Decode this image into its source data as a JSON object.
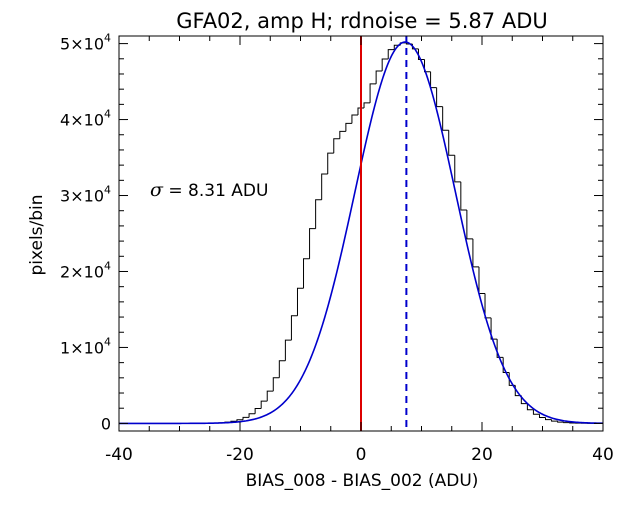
{
  "chart_data": {
    "type": "histogram",
    "title": "GFA02, amp H; rdnoise = 5.87 ADU",
    "xlabel": "BIAS_008 - BIAS_002 (ADU)",
    "ylabel": "pixels/bin",
    "xlim": [
      -40,
      40
    ],
    "ylim": [
      -1000,
      51000
    ],
    "xticks": [
      {
        "value": -40,
        "label": "-40"
      },
      {
        "value": -20,
        "label": "-20"
      },
      {
        "value": 0,
        "label": "0"
      },
      {
        "value": 20,
        "label": "20"
      },
      {
        "value": 40,
        "label": "40"
      }
    ],
    "yticks": [
      {
        "value": 0,
        "label": "0",
        "exponent": ""
      },
      {
        "value": 10000,
        "label": "1×10",
        "exponent": "4"
      },
      {
        "value": 20000,
        "label": "2×10",
        "exponent": "4"
      },
      {
        "value": 30000,
        "label": "3×10",
        "exponent": "4"
      },
      {
        "value": 40000,
        "label": "4×10",
        "exponent": "4"
      },
      {
        "value": 50000,
        "label": "5×10",
        "exponent": "4"
      }
    ],
    "annotation": {
      "symbol": "σ",
      "text": " = 8.31 ADU"
    },
    "histogram": {
      "bin_width": 1,
      "bins": [
        {
          "x": -28,
          "count": 3
        },
        {
          "x": -27,
          "count": 7
        },
        {
          "x": -26,
          "count": 14
        },
        {
          "x": -25,
          "count": 27
        },
        {
          "x": -24,
          "count": 51
        },
        {
          "x": -23,
          "count": 94
        },
        {
          "x": -22,
          "count": 167
        },
        {
          "x": -21,
          "count": 290
        },
        {
          "x": -20,
          "count": 489
        },
        {
          "x": -19,
          "count": 799
        },
        {
          "x": -18,
          "count": 1268
        },
        {
          "x": -17,
          "count": 1955
        },
        {
          "x": -16,
          "count": 2927
        },
        {
          "x": -15,
          "count": 4257
        },
        {
          "x": -14,
          "count": 6011
        },
        {
          "x": -13,
          "count": 8242
        },
        {
          "x": -12,
          "count": 10971
        },
        {
          "x": -11,
          "count": 14179
        },
        {
          "x": -10,
          "count": 17790
        },
        {
          "x": -9,
          "count": 21672
        },
        {
          "x": -8,
          "count": 25636
        },
        {
          "x": -7,
          "count": 29446
        },
        {
          "x": -6,
          "count": 32840
        },
        {
          "x": -5,
          "count": 35575
        },
        {
          "x": -4,
          "count": 37470
        },
        {
          "x": -3,
          "count": 38450
        },
        {
          "x": -2,
          "count": 39500
        },
        {
          "x": -1,
          "count": 40600
        },
        {
          "x": 0,
          "count": 41520
        },
        {
          "x": 1,
          "count": 42200
        },
        {
          "x": 2,
          "count": 44700
        },
        {
          "x": 3,
          "count": 46400
        },
        {
          "x": 4,
          "count": 47980
        },
        {
          "x": 5,
          "count": 49200
        },
        {
          "x": 6,
          "count": 49780
        },
        {
          "x": 7,
          "count": 50100
        },
        {
          "x": 8,
          "count": 49950
        },
        {
          "x": 9,
          "count": 49300
        },
        {
          "x": 10,
          "count": 47900
        },
        {
          "x": 11,
          "count": 46300
        },
        {
          "x": 12,
          "count": 44200
        },
        {
          "x": 13,
          "count": 41700
        },
        {
          "x": 14,
          "count": 38600
        },
        {
          "x": 15,
          "count": 35300
        },
        {
          "x": 16,
          "count": 31800
        },
        {
          "x": 17,
          "count": 28100
        },
        {
          "x": 18,
          "count": 24300
        },
        {
          "x": 19,
          "count": 20600
        },
        {
          "x": 20,
          "count": 17100
        },
        {
          "x": 21,
          "count": 13900
        },
        {
          "x": 22,
          "count": 11100
        },
        {
          "x": 23,
          "count": 8700
        },
        {
          "x": 24,
          "count": 6700
        },
        {
          "x": 25,
          "count": 5000
        },
        {
          "x": 26,
          "count": 3650
        },
        {
          "x": 27,
          "count": 2600
        },
        {
          "x": 28,
          "count": 1800
        },
        {
          "x": 29,
          "count": 1200
        },
        {
          "x": 30,
          "count": 780
        },
        {
          "x": 31,
          "count": 490
        },
        {
          "x": 32,
          "count": 300
        },
        {
          "x": 33,
          "count": 175
        },
        {
          "x": 34,
          "count": 100
        },
        {
          "x": 35,
          "count": 55
        },
        {
          "x": 36,
          "count": 29
        },
        {
          "x": 37,
          "count": 15
        },
        {
          "x": 38,
          "count": 7
        },
        {
          "x": 39,
          "count": 3
        }
      ],
      "color": "#000000"
    },
    "fit": {
      "type": "gaussian",
      "amplitude": 50200,
      "mean": 7.3,
      "sigma": 8.31,
      "color": "#0000cc"
    },
    "vlines": [
      {
        "x": 0,
        "style": "solid",
        "color": "#dd0000"
      },
      {
        "x": 7.5,
        "style": "dashed",
        "color": "#0000cc"
      }
    ]
  }
}
